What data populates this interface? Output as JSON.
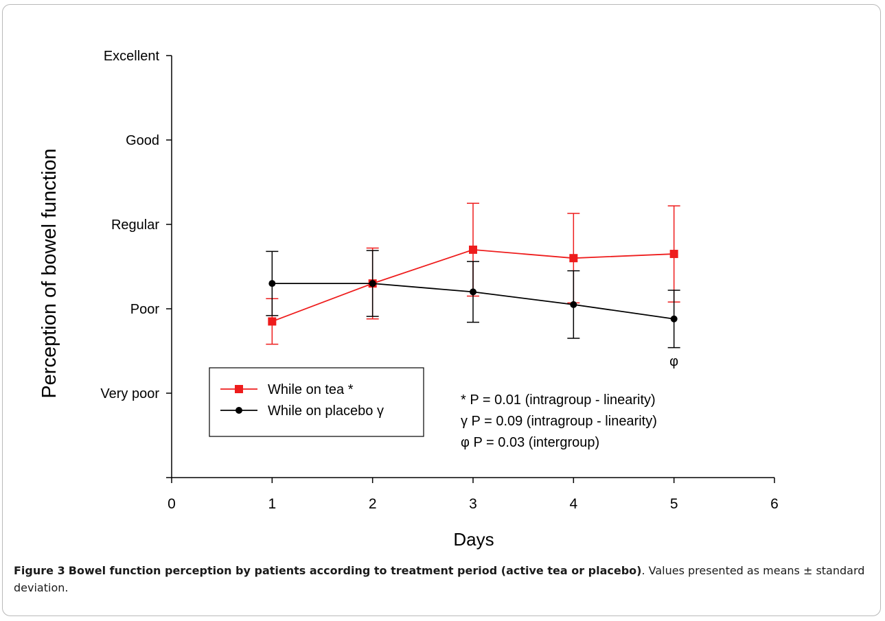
{
  "chart_data": {
    "type": "line",
    "xlabel": "Days",
    "ylabel": "Perception of bowel function",
    "xlim": [
      0,
      6
    ],
    "ylim": [
      0,
      5
    ],
    "x_ticks": [
      0,
      1,
      2,
      3,
      4,
      5,
      6
    ],
    "x_tick_labels": [
      "0",
      "1",
      "2",
      "3",
      "4",
      "5",
      "6"
    ],
    "y_ticks": [
      1,
      2,
      3,
      4,
      5
    ],
    "y_tick_labels": [
      "Very poor",
      "Poor",
      "Regular",
      "Good",
      "Excellent"
    ],
    "grid": false,
    "legend_position": "bottom-left",
    "x": [
      1,
      2,
      3,
      4,
      5
    ],
    "series": [
      {
        "name": "While on tea *",
        "color": "#ee1c1c",
        "marker": "square",
        "values": [
          1.85,
          2.3,
          2.7,
          2.6,
          2.65
        ],
        "errors": [
          0.27,
          0.42,
          0.55,
          0.53,
          0.57
        ]
      },
      {
        "name": "While on placebo γ",
        "color": "#000000",
        "marker": "circle",
        "values": [
          2.3,
          2.3,
          2.2,
          2.05,
          1.88
        ],
        "errors": [
          0.38,
          0.39,
          0.36,
          0.4,
          0.34
        ]
      }
    ],
    "annotations": [
      "* P = 0.01 (intragroup - linearity)",
      "γ P = 0.09 (intragroup - linearity)",
      "φ P = 0.03 (intergroup)"
    ],
    "point_annotation": {
      "x": 5,
      "text": "φ"
    }
  },
  "caption": {
    "figure_label": "Figure 3",
    "bold_text": "Bowel function perception by patients according to treatment period (active tea or placebo)",
    "rest_text": ". Values presented as means ± standard deviation."
  }
}
